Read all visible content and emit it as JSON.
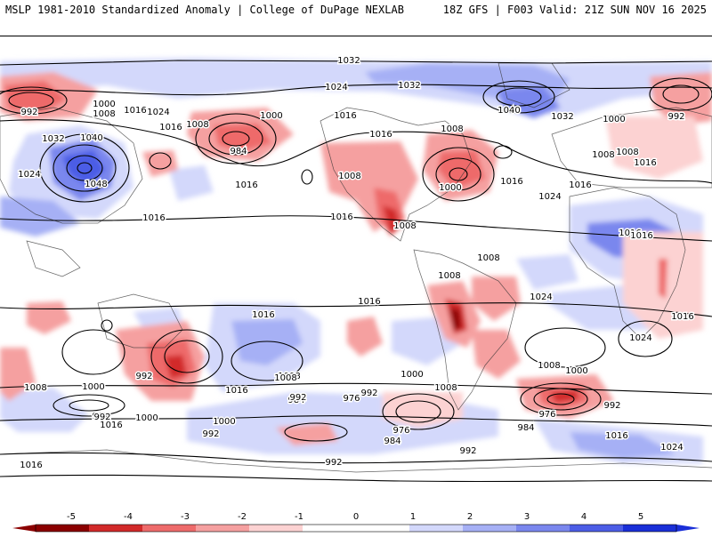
{
  "header": {
    "left": "MSLP 1981-2010 Standardized Anomaly | College of DuPage NEXLAB",
    "right": "18Z GFS | F003 Valid: 21Z SUN NOV 16 2025"
  },
  "colors": {
    "neg5": "#8b0000",
    "neg4": "#d22a2a",
    "neg3": "#ee6b6b",
    "neg2": "#f5a0a0",
    "neg1": "#fcd2d2",
    "zero": "#ffffff",
    "pos1": "#d3d8fb",
    "pos2": "#a6b0f5",
    "pos3": "#7a87ee",
    "pos4": "#4c5de6",
    "pos5": "#1a2fd8"
  },
  "colorbar": {
    "ticks": [
      "-5",
      "-4",
      "-3",
      "-2",
      "-1",
      "0",
      "1",
      "2",
      "3",
      "4",
      "5"
    ]
  },
  "isobar_labels": [
    {
      "text": "1032"
    },
    {
      "text": "1024"
    },
    {
      "text": "1032"
    },
    {
      "text": "1032"
    },
    {
      "text": "992"
    },
    {
      "text": "992"
    },
    {
      "text": "1000"
    },
    {
      "text": "1008"
    },
    {
      "text": "1016"
    },
    {
      "text": "1024"
    },
    {
      "text": "1016"
    },
    {
      "text": "1016"
    },
    {
      "text": "1040"
    },
    {
      "text": "1000"
    },
    {
      "text": "1000"
    },
    {
      "text": "1032"
    },
    {
      "text": "1040"
    },
    {
      "text": "1008"
    },
    {
      "text": "1008"
    },
    {
      "text": "1016"
    },
    {
      "text": "1008"
    },
    {
      "text": "1008"
    },
    {
      "text": "1016"
    },
    {
      "text": "984"
    },
    {
      "text": "1024"
    },
    {
      "text": "1048"
    },
    {
      "text": "1016"
    },
    {
      "text": "1008"
    },
    {
      "text": "1000"
    },
    {
      "text": "1016"
    },
    {
      "text": "1024"
    },
    {
      "text": "1016"
    },
    {
      "text": "1016"
    },
    {
      "text": "1008"
    },
    {
      "text": "1016"
    },
    {
      "text": "1008"
    },
    {
      "text": "1008"
    },
    {
      "text": "1016"
    },
    {
      "text": "1016"
    },
    {
      "text": "1016"
    },
    {
      "text": "1016"
    },
    {
      "text": "1024"
    },
    {
      "text": "1016"
    },
    {
      "text": "1024"
    },
    {
      "text": "992"
    },
    {
      "text": "1008"
    },
    {
      "text": "1000"
    },
    {
      "text": "1000"
    },
    {
      "text": "1008"
    },
    {
      "text": "984"
    },
    {
      "text": "976"
    },
    {
      "text": "992"
    },
    {
      "text": "1000"
    },
    {
      "text": "1016"
    },
    {
      "text": "1008"
    },
    {
      "text": "992"
    },
    {
      "text": "1008"
    },
    {
      "text": "1016"
    },
    {
      "text": "1000"
    },
    {
      "text": "992"
    },
    {
      "text": "976"
    },
    {
      "text": "984"
    },
    {
      "text": "976"
    },
    {
      "text": "984"
    },
    {
      "text": "992"
    },
    {
      "text": "992"
    },
    {
      "text": "992"
    },
    {
      "text": "1016"
    },
    {
      "text": "1024"
    },
    {
      "text": "1016"
    },
    {
      "text": "992"
    },
    {
      "text": "1000"
    },
    {
      "text": "1008"
    },
    {
      "text": "992"
    }
  ]
}
